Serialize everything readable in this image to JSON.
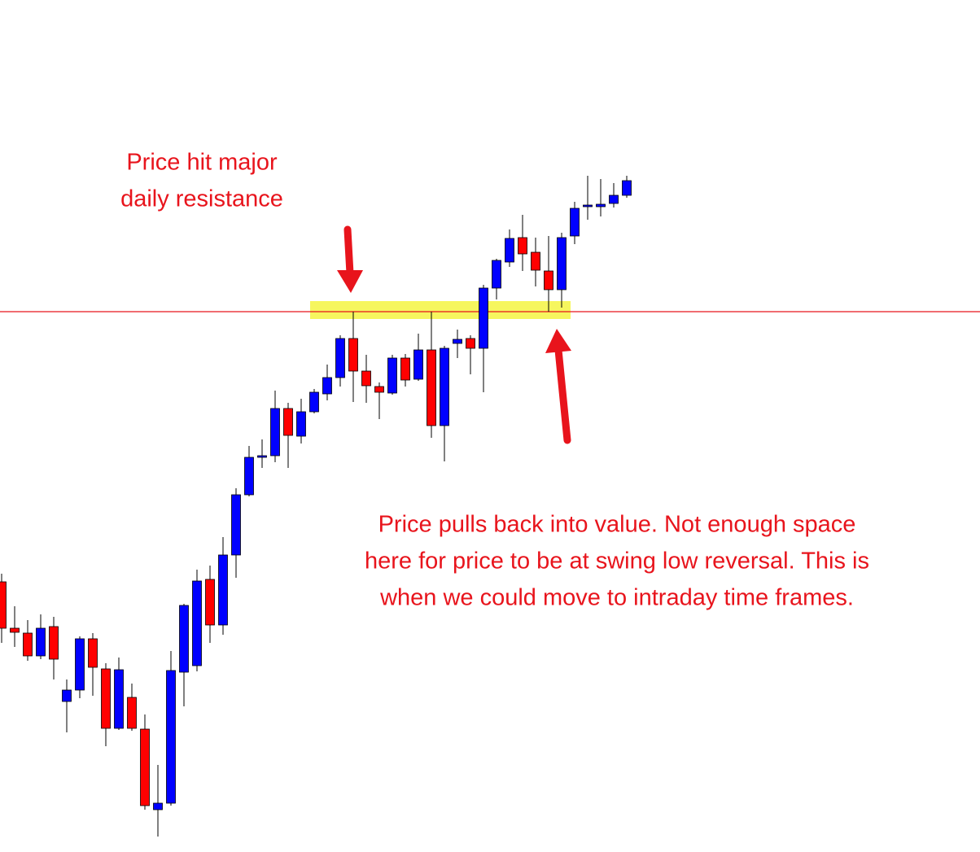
{
  "chart_data": {
    "type": "candlestick",
    "annotations": [
      [
        "Price hit major",
        "daily resistance"
      ],
      [
        "Price pulls back into value. Not enough space",
        "here for price to be at swing low reversal. This is",
        "when we could move to intraday time frames."
      ]
    ],
    "ylim": [
      0,
      1047
    ],
    "hline": 664,
    "up_color": "#0000ff",
    "down_color": "#ff0000",
    "open": [
      332,
      275,
      269,
      241,
      277,
      185,
      199,
      262,
      225,
      152,
      190,
      151,
      52,
      60,
      221,
      229,
      335,
      279,
      365,
      439,
      485,
      487,
      545,
      511,
      541,
      563,
      583,
      631,
      591,
      572,
      564,
      607,
      581,
      617,
      524,
      625,
      631,
      619,
      693,
      725,
      755,
      737,
      714,
      691,
      757,
      793,
      793,
      797,
      807
    ],
    "high": [
      342,
      302,
      285,
      292,
      289,
      212,
      265,
      269,
      232,
      239,
      207,
      169,
      107,
      247,
      305,
      347,
      352,
      387,
      447,
      499,
      507,
      567,
      552,
      557,
      569,
      599,
      635,
      664,
      611,
      577,
      611,
      612,
      637,
      664,
      622,
      642,
      635,
      697,
      729,
      765,
      783,
      755,
      757,
      761,
      799,
      831,
      827,
      822,
      831
    ],
    "low": [
      257,
      252,
      235,
      237,
      212,
      147,
      189,
      192,
      130,
      150,
      149,
      52,
      19,
      57,
      179,
      222,
      257,
      267,
      337,
      437,
      472,
      479,
      472,
      502,
      539,
      555,
      572,
      553,
      552,
      532,
      562,
      572,
      579,
      509,
      480,
      607,
      587,
      565,
      679,
      719,
      714,
      695,
      664,
      669,
      747,
      777,
      781,
      792,
      804
    ],
    "close": [
      275,
      270,
      241,
      275,
      237,
      199,
      262,
      227,
      152,
      224,
      152,
      57,
      60,
      223,
      303,
      333,
      279,
      365,
      439,
      485,
      487,
      545,
      512,
      541,
      565,
      583,
      631,
      591,
      573,
      565,
      607,
      580,
      617,
      524,
      619,
      630,
      619,
      693,
      727,
      754,
      735,
      715,
      691,
      755,
      791,
      795,
      796,
      807,
      825
    ]
  }
}
